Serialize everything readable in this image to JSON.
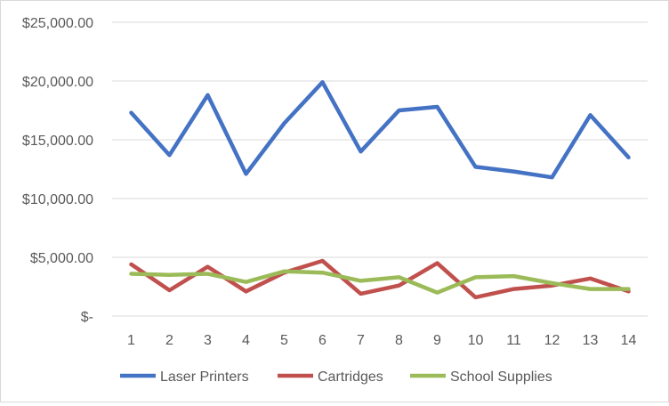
{
  "chart_data": {
    "type": "line",
    "title": "",
    "xlabel": "",
    "ylabel": "",
    "x": [
      1,
      2,
      3,
      4,
      5,
      6,
      7,
      8,
      9,
      10,
      11,
      12,
      13,
      14
    ],
    "x_tick_labels": [
      "1",
      "2",
      "3",
      "4",
      "5",
      "6",
      "7",
      "8",
      "9",
      "10",
      "11",
      "12",
      "13",
      "14"
    ],
    "ylim": [
      0,
      25000
    ],
    "y_ticks": [
      0,
      5000,
      10000,
      15000,
      20000,
      25000
    ],
    "y_tick_labels": [
      "$-",
      "$5,000.00",
      "$10,000.00",
      "$15,000.00",
      "$20,000.00",
      "$25,000.00"
    ],
    "grid": true,
    "legend_position": "bottom",
    "series": [
      {
        "name": "Laser Printers",
        "color": "#4472c4",
        "values": [
          17300,
          13700,
          18800,
          12100,
          16400,
          19900,
          14000,
          17500,
          17800,
          12700,
          12300,
          11800,
          17100,
          13500
        ]
      },
      {
        "name": "Cartridges",
        "color": "#c0504d",
        "values": [
          4400,
          2200,
          4200,
          2100,
          3700,
          4700,
          1900,
          2600,
          4500,
          1600,
          2300,
          2600,
          3200,
          2100
        ]
      },
      {
        "name": "School Supplies",
        "color": "#9bbb59",
        "values": [
          3600,
          3500,
          3600,
          2900,
          3800,
          3700,
          3000,
          3300,
          2000,
          3300,
          3400,
          2800,
          2300,
          2300
        ]
      }
    ]
  }
}
